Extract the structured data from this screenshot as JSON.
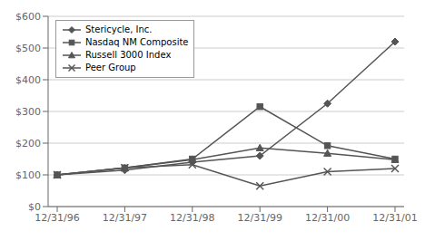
{
  "chart_data": {
    "type": "line",
    "categories": [
      "12/31/96",
      "12/31/97",
      "12/31/98",
      "12/31/99",
      "12/31/00",
      "12/31/01"
    ],
    "series": [
      {
        "name": "Stericycle, Inc.",
        "color": "#555555",
        "marker": "diamond",
        "line_style": "solid",
        "values": [
          100,
          115,
          140,
          160,
          325,
          520
        ]
      },
      {
        "name": "Nasdaq NM Composite",
        "color": "#555555",
        "marker": "square",
        "line_style": "solid",
        "values": [
          100,
          122,
          150,
          315,
          192,
          150
        ]
      },
      {
        "name": "Russell 3000 Index",
        "color": "#555555",
        "marker": "triangle",
        "line_style": "solid",
        "values": [
          100,
          122,
          148,
          185,
          168,
          148
        ]
      },
      {
        "name": "Peer Group",
        "color": "#555555",
        "marker": "x",
        "line_style": "solid",
        "values": [
          100,
          122,
          132,
          65,
          110,
          120
        ]
      }
    ],
    "ylim": [
      0,
      600
    ],
    "yticks": [
      {
        "value": 0,
        "label": "$0"
      },
      {
        "value": 100,
        "label": "$100"
      },
      {
        "value": 200,
        "label": "$200"
      },
      {
        "value": 300,
        "label": "$300"
      },
      {
        "value": 400,
        "label": "$400"
      },
      {
        "value": 500,
        "label": "$500"
      },
      {
        "value": 600,
        "label": "$600"
      }
    ],
    "grid": "y",
    "legend": "upper left"
  }
}
